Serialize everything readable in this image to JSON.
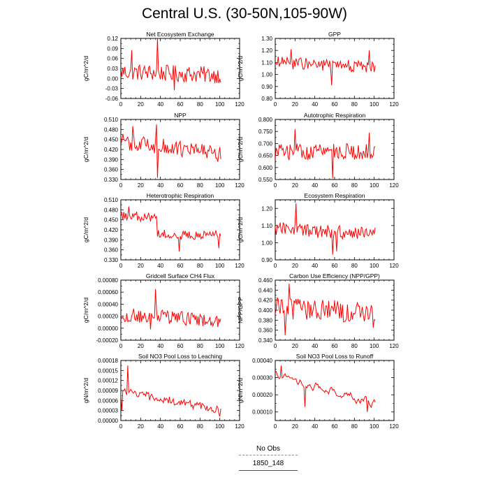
{
  "page": {
    "title": "Central U.S. (30-50N,105-90W)"
  },
  "legend": {
    "entries": [
      {
        "label": "No Obs",
        "color": "#8080ff",
        "dash": true
      },
      {
        "label": "1850_148",
        "color": "#ff0000",
        "dash": false
      }
    ]
  },
  "chart_data": [
    {
      "type": "line",
      "title": "Net Ecosystem Exchange",
      "ylabel": "gC/m^2/d",
      "xlim": [
        0,
        120
      ],
      "ylim": [
        -0.06,
        0.12
      ],
      "xticks": [
        0,
        20,
        40,
        60,
        80,
        100,
        120
      ],
      "yticks": [
        "-0.06",
        "-0.03",
        "0.00",
        "0.03",
        "0.06",
        "0.09",
        "0.12"
      ],
      "series": [
        {
          "color": "#ff0000",
          "shape": "noisy",
          "n": 102,
          "x0": 0,
          "mean": 0.02,
          "amp": 0.025,
          "trend": -0.01,
          "spikes": [
            [
              37,
              0.12
            ],
            [
              11,
              0.085
            ],
            [
              54,
              -0.035
            ]
          ]
        }
      ]
    },
    {
      "type": "line",
      "title": "GPP",
      "ylabel": "gC/m^2/d",
      "xlim": [
        0,
        120
      ],
      "ylim": [
        0.8,
        1.3
      ],
      "xticks": [
        0,
        20,
        40,
        60,
        80,
        100,
        120
      ],
      "yticks": [
        "0.80",
        "0.90",
        "1.00",
        "1.10",
        "1.20",
        "1.30"
      ],
      "series": [
        {
          "color": "#ff0000",
          "shape": "noisy",
          "n": 102,
          "x0": 0,
          "mean": 1.1,
          "amp": 0.05,
          "trend": -0.04,
          "spikes": [
            [
              16,
              1.21
            ],
            [
              57,
              0.91
            ],
            [
              95,
              1.2
            ]
          ]
        }
      ]
    },
    {
      "type": "line",
      "title": "NPP",
      "ylabel": "gC/m^2/d",
      "xlim": [
        0,
        120
      ],
      "ylim": [
        0.33,
        0.51
      ],
      "xticks": [
        0,
        20,
        40,
        60,
        80,
        100,
        120
      ],
      "yticks": [
        "0.330",
        "0.360",
        "0.390",
        "0.420",
        "0.450",
        "0.480",
        "0.510"
      ],
      "series": [
        {
          "color": "#ff0000",
          "shape": "noisy",
          "n": 102,
          "x0": 0,
          "mean": 0.445,
          "amp": 0.025,
          "trend": -0.04,
          "spikes": [
            [
              37,
              0.335
            ],
            [
              12,
              0.49
            ],
            [
              36,
              0.495
            ]
          ]
        }
      ]
    },
    {
      "type": "line",
      "title": "Autotrophic Respiration",
      "ylabel": "gC/m^2/d",
      "xlim": [
        0,
        120
      ],
      "ylim": [
        0.55,
        0.8
      ],
      "xticks": [
        0,
        20,
        40,
        60,
        80,
        100,
        120
      ],
      "yticks": [
        "0.550",
        "0.600",
        "0.650",
        "0.700",
        "0.750",
        "0.800"
      ],
      "series": [
        {
          "color": "#ff0000",
          "shape": "noisy",
          "n": 102,
          "x0": 0,
          "mean": 0.665,
          "amp": 0.035,
          "trend": 0.0,
          "spikes": [
            [
              20,
              0.76
            ],
            [
              58,
              0.555
            ],
            [
              95,
              0.745
            ]
          ]
        }
      ]
    },
    {
      "type": "line",
      "title": "Heterotrophic Respiration",
      "ylabel": "gC/m^2/d",
      "xlim": [
        0,
        120
      ],
      "ylim": [
        0.33,
        0.51
      ],
      "xticks": [
        0,
        20,
        40,
        60,
        80,
        100,
        120
      ],
      "yticks": [
        "0.330",
        "0.360",
        "0.390",
        "0.420",
        "0.450",
        "0.480",
        "0.510"
      ],
      "series": [
        {
          "color": "#ff0000",
          "shape": "step",
          "n": 102,
          "x0": 0,
          "mean1": 0.46,
          "mean2": 0.405,
          "split": 37,
          "amp": 0.015,
          "spikes": [
            [
              8,
              0.49
            ],
            [
              59,
              0.355
            ],
            [
              99,
              0.365
            ]
          ]
        }
      ]
    },
    {
      "type": "line",
      "title": "Ecosystem Respiration",
      "ylabel": "gC/m^2/d",
      "xlim": [
        0,
        120
      ],
      "ylim": [
        0.9,
        1.25
      ],
      "xticks": [
        0,
        20,
        40,
        60,
        80,
        100,
        120
      ],
      "yticks": [
        "0.90",
        "1.00",
        "1.10",
        "1.20"
      ],
      "series": [
        {
          "color": "#ff0000",
          "shape": "noisy",
          "n": 102,
          "x0": 0,
          "mean": 1.08,
          "amp": 0.04,
          "trend": -0.03,
          "spikes": [
            [
              21,
              1.23
            ],
            [
              58,
              0.93
            ],
            [
              62,
              0.95
            ]
          ]
        }
      ]
    },
    {
      "type": "line",
      "title": "Gridcell Surface CH4 Flux",
      "ylabel": "gC/m^2/d",
      "xlim": [
        0,
        120
      ],
      "ylim": [
        -0.0002,
        0.0008
      ],
      "xticks": [
        0,
        20,
        40,
        60,
        80,
        100,
        120
      ],
      "yticks": [
        "-0.00020",
        "0.00000",
        "0.00020",
        "0.00040",
        "0.00060",
        "0.00080"
      ],
      "series": [
        {
          "color": "#ff0000",
          "shape": "noisy",
          "n": 102,
          "x0": 0,
          "mean": 0.00022,
          "amp": 0.00012,
          "trend": -8e-05,
          "spikes": [
            [
              35,
              0.00065
            ],
            [
              30,
              -2e-05
            ],
            [
              98,
              2e-05
            ]
          ]
        }
      ]
    },
    {
      "type": "line",
      "title": "Carbon Use Efficiency (NPP/GPP)",
      "ylabel": "NPP/GPP",
      "xlim": [
        0,
        120
      ],
      "ylim": [
        0.34,
        0.46
      ],
      "xticks": [
        0,
        20,
        40,
        60,
        80,
        100,
        120
      ],
      "yticks": [
        "0.340",
        "0.360",
        "0.380",
        "0.400",
        "0.420",
        "0.440",
        "0.460"
      ],
      "series": [
        {
          "color": "#ff0000",
          "shape": "noisy",
          "n": 102,
          "x0": 0,
          "mean": 0.405,
          "amp": 0.022,
          "trend": -0.01,
          "spikes": [
            [
              14,
              0.453
            ],
            [
              10,
              0.35
            ],
            [
              99,
              0.365
            ]
          ]
        }
      ]
    },
    {
      "type": "line",
      "title": "Soil NO3 Pool Loss to Leaching",
      "ylabel": "gN/m^2/d",
      "xlim": [
        0,
        120
      ],
      "ylim": [
        0,
        0.00018
      ],
      "xticks": [
        0,
        20,
        40,
        60,
        80,
        100,
        120
      ],
      "yticks": [
        "0.00000",
        "0.00003",
        "0.00006",
        "0.00009",
        "0.00012",
        "0.00015",
        "0.00018"
      ],
      "series": [
        {
          "color": "#ff0000",
          "shape": "decay",
          "n": 102,
          "x0": 0,
          "start": 9e-05,
          "end": 3e-05,
          "amp": 1.2e-05,
          "spikes": [
            [
              1,
              3e-05
            ],
            [
              7,
              0.000165
            ],
            [
              100,
              1.2e-05
            ]
          ]
        }
      ]
    },
    {
      "type": "line",
      "title": "Soil NO3 Pool Loss to Runoff",
      "ylabel": "gN/m^2/d",
      "xlim": [
        0,
        120
      ],
      "ylim": [
        5e-05,
        0.0004
      ],
      "xticks": [
        0,
        20,
        40,
        60,
        80,
        100,
        120
      ],
      "yticks": [
        "0.00010",
        "0.00020",
        "0.00030",
        "0.00040"
      ],
      "series": [
        {
          "color": "#ff0000",
          "shape": "smooth",
          "n": 102,
          "x0": 0,
          "start": 0.00032,
          "end": 0.00015,
          "amp": 4e-05,
          "spikes": [
            [
              6,
              0.00037
            ],
            [
              30,
              0.00013
            ],
            [
              93,
              0.0001
            ]
          ]
        }
      ]
    }
  ]
}
